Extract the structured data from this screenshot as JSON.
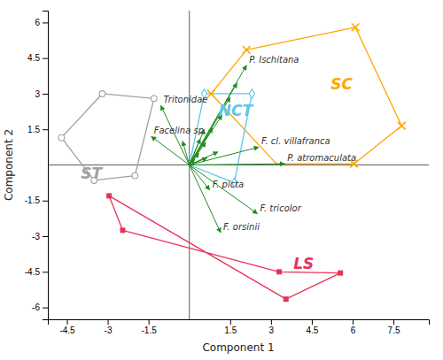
{
  "chart_data": {
    "type": "biplot",
    "xlabel": "Component 1",
    "ylabel": "Component 2",
    "xlim": [
      -5.2,
      8.8
    ],
    "ylim": [
      -6.5,
      6.5
    ],
    "xticks": [
      -4.5,
      -3,
      -1.5,
      1.5,
      3,
      4.5,
      6,
      7.5
    ],
    "yticks": [
      -6,
      -4.5,
      -3,
      -1.5,
      1.5,
      3,
      4.5,
      6
    ],
    "series": [
      {
        "name": "SC",
        "color": "#FFA500",
        "marker": "x",
        "x": [
          2.1,
          6.1,
          7.8,
          6.05,
          0.8
        ],
        "y": [
          4.85,
          5.8,
          1.65,
          0.05,
          3.0
        ],
        "hull_x": [
          0.8,
          2.1,
          6.1,
          7.8,
          6.05,
          3.2,
          0.8
        ],
        "hull_y": [
          3.0,
          4.85,
          5.8,
          1.65,
          0.05,
          0.05,
          3.0
        ],
        "label_x": 5.6,
        "label_y": 3.4
      },
      {
        "name": "NCT",
        "color": "#5BC8E8",
        "marker": "diamond",
        "x": [
          0.55,
          2.3,
          1.65
        ],
        "y": [
          3.0,
          3.0,
          -0.75
        ],
        "hull_x": [
          0.0,
          0.55,
          2.3,
          1.65,
          0.0
        ],
        "hull_y": [
          0.0,
          3.0,
          3.0,
          -0.75,
          0.0
        ],
        "label_x": 1.7,
        "label_y": 2.3
      },
      {
        "name": "ST",
        "color": "#A0A0A0",
        "marker": "circle",
        "x": [
          -4.7,
          -3.2,
          -1.3,
          -2.0,
          -3.5
        ],
        "y": [
          1.15,
          3.0,
          2.8,
          -0.45,
          -0.65
        ],
        "hull_x": [
          -4.7,
          -3.2,
          -1.3,
          -2.0,
          -3.5,
          -4.7
        ],
        "hull_y": [
          1.15,
          3.0,
          2.8,
          -0.45,
          -0.65,
          1.15
        ],
        "label_x": -3.6,
        "label_y": -0.35
      },
      {
        "name": "LS",
        "color": "#E8325A",
        "marker": "square",
        "x": [
          -2.95,
          -2.45,
          3.3,
          5.55,
          3.55
        ],
        "y": [
          -1.3,
          -2.75,
          -4.5,
          -4.55,
          -5.65
        ],
        "hull_x": [
          -2.95,
          -2.45,
          3.3,
          5.55,
          3.55,
          -2.95
        ],
        "hull_y": [
          -1.3,
          -2.75,
          -4.5,
          -4.55,
          -5.65,
          -1.3
        ],
        "label_x": 4.2,
        "label_y": -4.15
      }
    ],
    "arrows": {
      "color": "#228B22",
      "x": [
        2.1,
        1.75,
        1.5,
        1.2,
        0.85,
        0.6,
        0.35,
        0.2,
        0.55,
        0.4,
        -0.25,
        1.05,
        0.65,
        2.55,
        3.5,
        0.75,
        2.5,
        1.15,
        -1.05,
        -1.4
      ],
      "y": [
        4.2,
        3.45,
        2.85,
        2.1,
        1.55,
        0.95,
        0.5,
        0.25,
        1.5,
        1.1,
        1.0,
        0.55,
        0.3,
        0.75,
        0.05,
        -1.05,
        -2.05,
        -2.85,
        2.5,
        1.2
      ],
      "labels": [
        "P. Ischitana",
        null,
        null,
        null,
        null,
        null,
        null,
        null,
        null,
        null,
        null,
        null,
        null,
        "F. cl. villafranca",
        "P. atromaculata",
        "F. picta",
        "F. tricolor",
        "F. orsinii",
        "Tritonidae",
        "Facelina sp."
      ]
    }
  }
}
